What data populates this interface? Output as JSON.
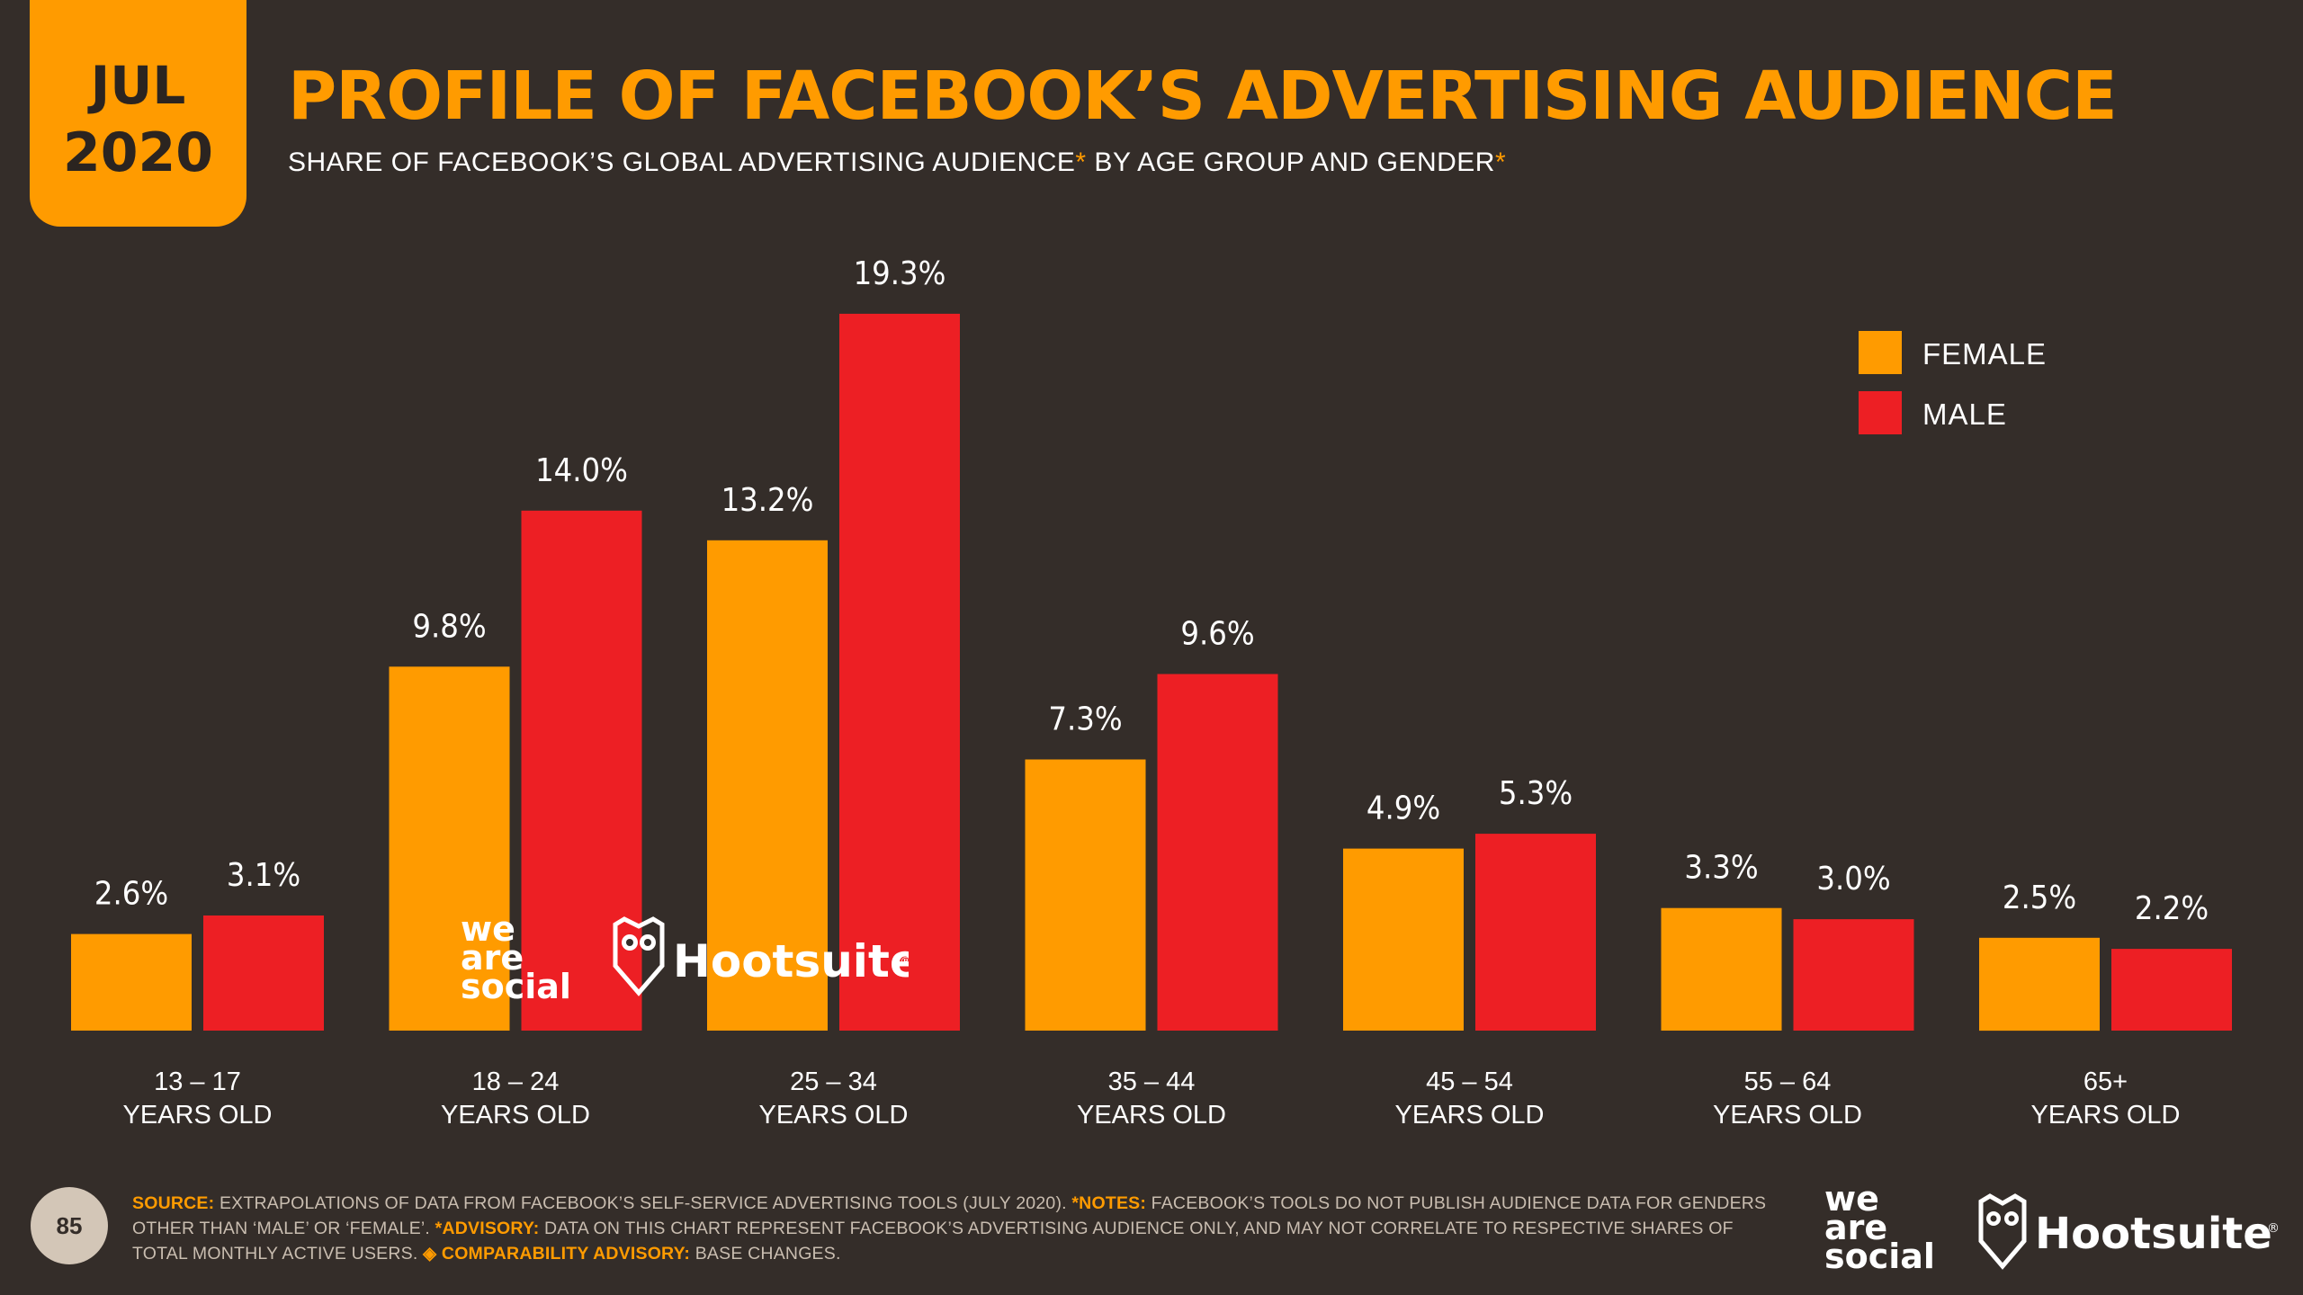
{
  "badge": {
    "month": "JUL",
    "year": "2020"
  },
  "title": "PROFILE OF FACEBOOK’S ADVERTISING AUDIENCE",
  "subtitle": {
    "part1": "SHARE OF FACEBOOK’S GLOBAL ADVERTISING AUDIENCE",
    "mark1": "*",
    "part2": " BY AGE GROUP AND GENDER",
    "mark2": "*"
  },
  "legend": [
    {
      "label": "FEMALE",
      "color": "#ff9b00"
    },
    {
      "label": "MALE",
      "color": "#ed1f24"
    }
  ],
  "chart_data": {
    "type": "bar",
    "title": "PROFILE OF FACEBOOK’S ADVERTISING AUDIENCE",
    "xlabel": "",
    "ylabel": "",
    "ylim": [
      0,
      20
    ],
    "categories": [
      [
        "13 – 17",
        "YEARS OLD"
      ],
      [
        "18 – 24",
        "YEARS OLD"
      ],
      [
        "25 – 34",
        "YEARS OLD"
      ],
      [
        "35 – 44",
        "YEARS OLD"
      ],
      [
        "45 – 54",
        "YEARS OLD"
      ],
      [
        "55 – 64",
        "YEARS OLD"
      ],
      [
        "65+",
        "YEARS OLD"
      ]
    ],
    "series": [
      {
        "name": "FEMALE",
        "color": "#ff9b00",
        "values": [
          2.6,
          9.8,
          13.2,
          7.3,
          4.9,
          3.3,
          2.5
        ],
        "labels": [
          "2.6%",
          "9.8%",
          "13.2%",
          "7.3%",
          "4.9%",
          "3.3%",
          "2.5%"
        ]
      },
      {
        "name": "MALE",
        "color": "#ed1f24",
        "values": [
          3.1,
          14.0,
          19.3,
          9.6,
          5.3,
          3.0,
          2.2
        ],
        "labels": [
          "3.1%",
          "14.0%",
          "19.3%",
          "9.6%",
          "5.3%",
          "3.0%",
          "2.2%"
        ]
      }
    ],
    "legend": "top-right",
    "grid": false
  },
  "footer": {
    "page": "85",
    "source_label": "SOURCE:",
    "source_text": " EXTRAPOLATIONS OF DATA FROM FACEBOOK’S SELF-SERVICE ADVERTISING TOOLS (JULY 2020). ",
    "notes_label": "*NOTES:",
    "notes_text": " FACEBOOK’S TOOLS DO NOT PUBLISH AUDIENCE DATA FOR GENDERS OTHER THAN ‘MALE’ OR ‘FEMALE’. ",
    "advisory_label": "*ADVISORY:",
    "advisory_text": " DATA ON THIS CHART REPRESENT FACEBOOK’S ADVERTISING AUDIENCE ONLY, AND MAY NOT CORRELATE TO RESPECTIVE SHARES OF TOTAL MONTHLY ACTIVE USERS. ",
    "comparability_label": "◈ COMPARABILITY ADVISORY:",
    "comparability_text": " BASE CHANGES."
  },
  "brands": {
    "we_are_social": [
      "we",
      "are",
      "social"
    ],
    "hootsuite": "Hootsuite",
    "registered": "®"
  },
  "colors": {
    "background": "#342d29",
    "accent": "#ff9b00",
    "male": "#ed1f24"
  }
}
